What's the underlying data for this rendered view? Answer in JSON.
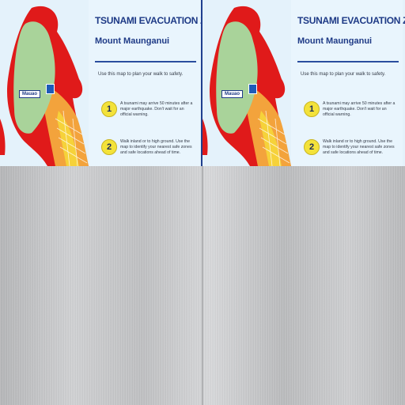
{
  "map": {
    "title": "TSUNAMI EVACUATION ZONES:",
    "subtitle": "Mount Maunganui",
    "intro": "Use this map to plan your walk to safety.",
    "place_label": "Mauao",
    "steps": [
      {
        "number": "1",
        "text": "A tsunami may arrive 50 minutes after a major earthquake. Don't wait for an official warning."
      },
      {
        "number": "2",
        "text": "Walk inland or to high ground. Use the map to identify your nearest safe zones and safe locations ahead of time."
      }
    ],
    "colors": {
      "red_zone": "#e01a1a",
      "orange_zone": "#f3a33c",
      "yellow_zone": "#f6d23a",
      "safe_zone": "#a9d39a",
      "title_blue": "#1e3a86"
    }
  }
}
